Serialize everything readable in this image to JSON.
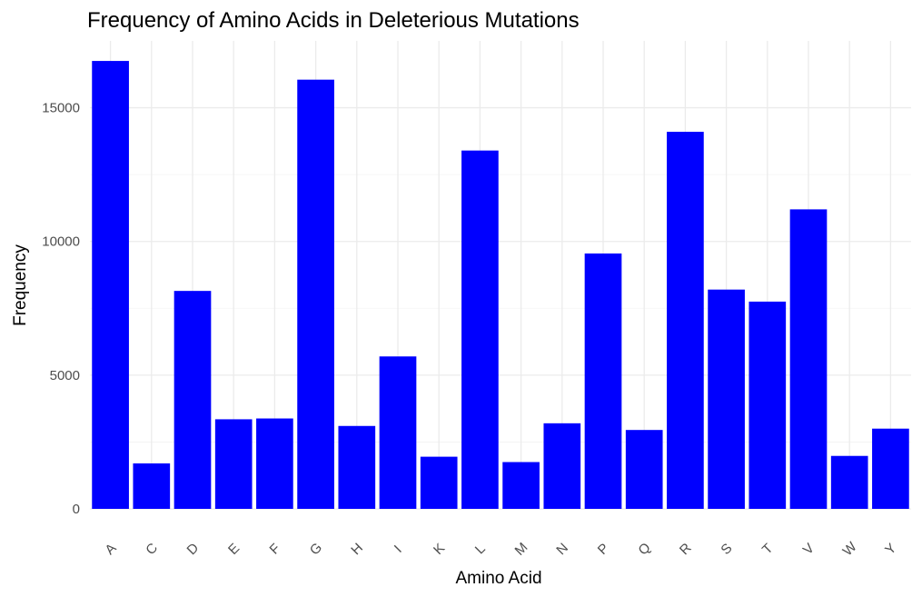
{
  "chart_data": {
    "type": "bar",
    "title": "Frequency of Amino Acids in Deleterious Mutations",
    "xlabel": "Amino Acid",
    "ylabel": "Frequency",
    "categories": [
      "A",
      "C",
      "D",
      "E",
      "F",
      "G",
      "H",
      "I",
      "K",
      "L",
      "M",
      "N",
      "P",
      "Q",
      "R",
      "S",
      "T",
      "V",
      "W",
      "Y"
    ],
    "values": [
      16750,
      1700,
      8150,
      3350,
      3380,
      16050,
      3100,
      5700,
      1950,
      13400,
      1750,
      3200,
      9550,
      2950,
      14100,
      8200,
      7750,
      11200,
      1980,
      3000
    ],
    "ylim": [
      0,
      17500
    ],
    "yticks": [
      "0",
      "5000",
      "10000",
      "15000"
    ],
    "bar_color": "#0000ff",
    "grid": true,
    "legend": "none"
  }
}
